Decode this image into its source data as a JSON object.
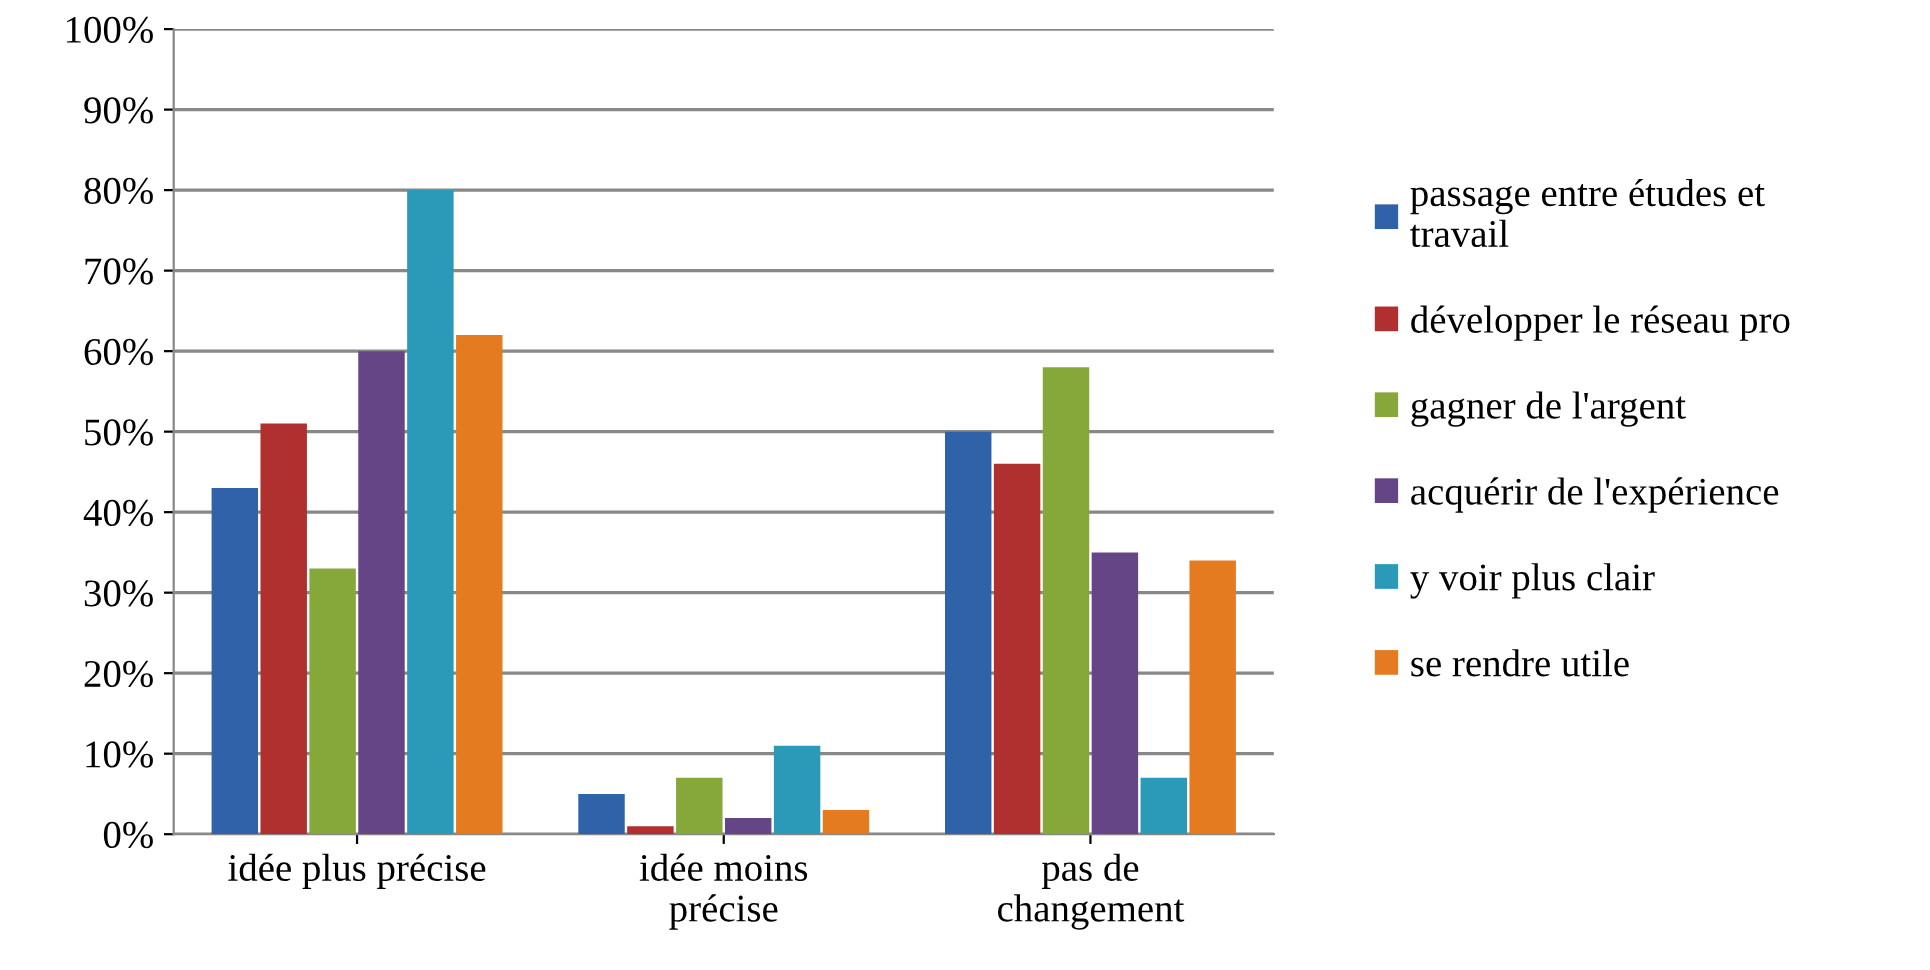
{
  "chart_data": {
    "type": "bar",
    "categories": [
      "idée plus précise",
      "idée moins\nprécise",
      "pas de\nchangement"
    ],
    "series": [
      {
        "name": "passage entre études et\ntravail",
        "color": "#2f62a8",
        "values": [
          43,
          5,
          50
        ]
      },
      {
        "name": "développer le réseau pro",
        "color": "#b03030",
        "values": [
          51,
          1,
          46
        ]
      },
      {
        "name": "gagner de l'argent",
        "color": "#86a83a",
        "values": [
          33,
          7,
          58
        ]
      },
      {
        "name": "acquérir de l'expérience",
        "color": "#654585",
        "values": [
          60,
          2,
          35
        ]
      },
      {
        "name": "y voir plus clair",
        "color": "#2a9ab8",
        "values": [
          80,
          11,
          7
        ]
      },
      {
        "name": "se rendre utile",
        "color": "#e57b20",
        "values": [
          62,
          3,
          34
        ]
      }
    ],
    "ylim": [
      0,
      100
    ],
    "yticks": [
      {
        "value": 0,
        "label": "0%"
      },
      {
        "value": 10,
        "label": "10%"
      },
      {
        "value": 20,
        "label": "20%"
      },
      {
        "value": 30,
        "label": "30%"
      },
      {
        "value": 40,
        "label": "40%"
      },
      {
        "value": 50,
        "label": "50%"
      },
      {
        "value": 60,
        "label": "60%"
      },
      {
        "value": 70,
        "label": "70%"
      },
      {
        "value": 80,
        "label": "80%"
      },
      {
        "value": 90,
        "label": "90%"
      },
      {
        "value": 100,
        "label": "100%"
      }
    ],
    "grid": "y",
    "legend": "right"
  }
}
